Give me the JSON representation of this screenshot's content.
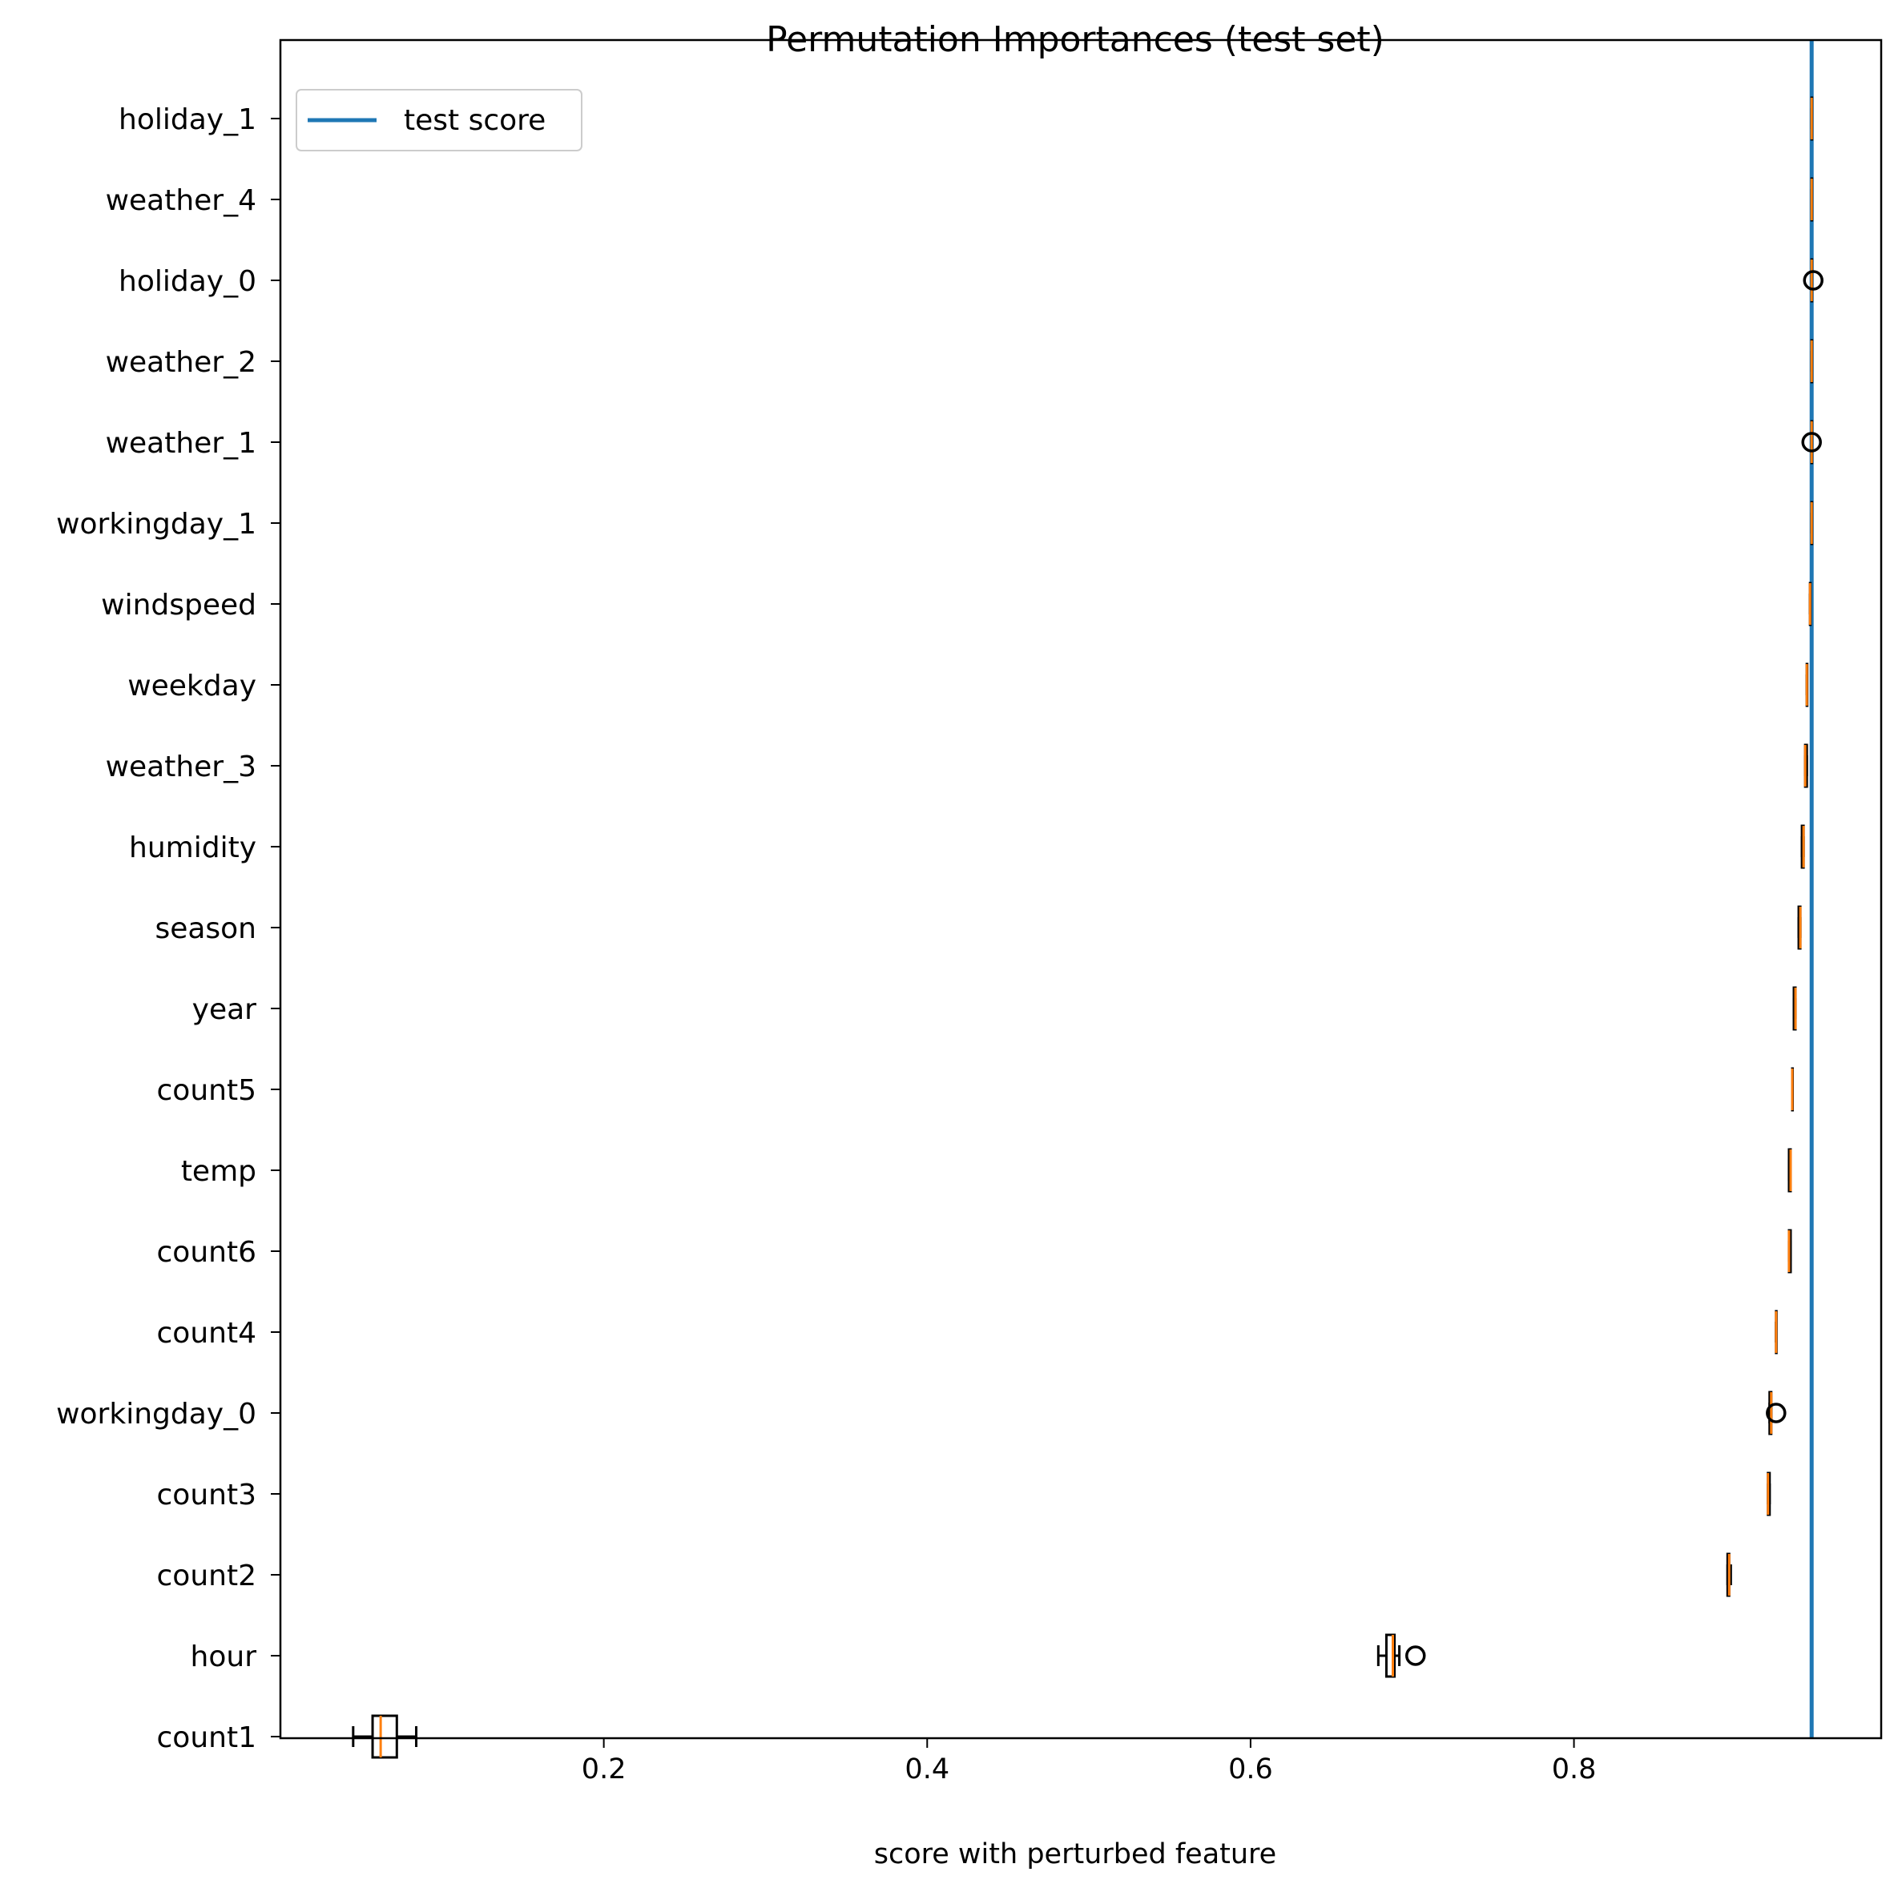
{
  "chart_data": {
    "type": "boxplot",
    "orientation": "horizontal",
    "title": "Permutation Importances (test set)",
    "xlabel": "score with perturbed feature",
    "ylabel": "",
    "xlim": [
      0.0,
      0.99
    ],
    "x_ticks": [
      {
        "value": 0.2,
        "label": "0.2"
      },
      {
        "value": 0.4,
        "label": "0.4"
      },
      {
        "value": 0.6,
        "label": "0.6"
      },
      {
        "value": 0.8,
        "label": "0.8"
      }
    ],
    "grid": false,
    "legend": {
      "placement": "top-left",
      "entries": [
        {
          "label": "test score",
          "color": "#1f77b4"
        }
      ]
    },
    "reference_line": {
      "label": "test score",
      "value": 0.947,
      "color": "#1f77b4"
    },
    "colors": {
      "box": "#000000",
      "median": "#ff7f0e",
      "outlier": "#000000",
      "reference": "#1f77b4"
    },
    "features": [
      {
        "name": "holiday_1",
        "whislo": 0.947,
        "q1": 0.947,
        "med": 0.947,
        "q3": 0.947,
        "whishi": 0.947,
        "fliers": []
      },
      {
        "name": "weather_4",
        "whislo": 0.947,
        "q1": 0.947,
        "med": 0.947,
        "q3": 0.947,
        "whishi": 0.947,
        "fliers": []
      },
      {
        "name": "holiday_0",
        "whislo": 0.947,
        "q1": 0.947,
        "med": 0.947,
        "q3": 0.947,
        "whishi": 0.947,
        "fliers": [
          0.948
        ]
      },
      {
        "name": "weather_2",
        "whislo": 0.947,
        "q1": 0.947,
        "med": 0.947,
        "q3": 0.947,
        "whishi": 0.947,
        "fliers": []
      },
      {
        "name": "weather_1",
        "whislo": 0.947,
        "q1": 0.947,
        "med": 0.947,
        "q3": 0.947,
        "whishi": 0.947,
        "fliers": [
          0.947
        ]
      },
      {
        "name": "workingday_1",
        "whislo": 0.947,
        "q1": 0.947,
        "med": 0.947,
        "q3": 0.947,
        "whishi": 0.947,
        "fliers": []
      },
      {
        "name": "windspeed",
        "whislo": 0.946,
        "q1": 0.946,
        "med": 0.946,
        "q3": 0.946,
        "whishi": 0.946,
        "fliers": []
      },
      {
        "name": "weekday",
        "whislo": 0.944,
        "q1": 0.944,
        "med": 0.944,
        "q3": 0.944,
        "whishi": 0.944,
        "fliers": []
      },
      {
        "name": "weather_3",
        "whislo": 0.943,
        "q1": 0.943,
        "med": 0.943,
        "q3": 0.944,
        "whishi": 0.944,
        "fliers": []
      },
      {
        "name": "humidity",
        "whislo": 0.941,
        "q1": 0.941,
        "med": 0.942,
        "q3": 0.942,
        "whishi": 0.942,
        "fliers": []
      },
      {
        "name": "season",
        "whislo": 0.939,
        "q1": 0.939,
        "med": 0.94,
        "q3": 0.94,
        "whishi": 0.94,
        "fliers": []
      },
      {
        "name": "year",
        "whislo": 0.936,
        "q1": 0.936,
        "med": 0.937,
        "q3": 0.937,
        "whishi": 0.937,
        "fliers": []
      },
      {
        "name": "count5",
        "whislo": 0.935,
        "q1": 0.935,
        "med": 0.935,
        "q3": 0.935,
        "whishi": 0.935,
        "fliers": []
      },
      {
        "name": "temp",
        "whislo": 0.933,
        "q1": 0.933,
        "med": 0.934,
        "q3": 0.934,
        "whishi": 0.934,
        "fliers": []
      },
      {
        "name": "count6",
        "whislo": 0.933,
        "q1": 0.933,
        "med": 0.933,
        "q3": 0.934,
        "whishi": 0.934,
        "fliers": []
      },
      {
        "name": "count4",
        "whislo": 0.925,
        "q1": 0.925,
        "med": 0.925,
        "q3": 0.925,
        "whishi": 0.925,
        "fliers": []
      },
      {
        "name": "workingday_0",
        "whislo": 0.921,
        "q1": 0.921,
        "med": 0.922,
        "q3": 0.922,
        "whishi": 0.922,
        "fliers": [
          0.925
        ]
      },
      {
        "name": "count3",
        "whislo": 0.92,
        "q1": 0.92,
        "med": 0.92,
        "q3": 0.921,
        "whishi": 0.921,
        "fliers": []
      },
      {
        "name": "count2",
        "whislo": 0.895,
        "q1": 0.895,
        "med": 0.896,
        "q3": 0.896,
        "whishi": 0.897,
        "fliers": []
      },
      {
        "name": "hour",
        "whislo": 0.679,
        "q1": 0.684,
        "med": 0.688,
        "q3": 0.689,
        "whishi": 0.692,
        "fliers": [
          0.702
        ]
      },
      {
        "name": "count1",
        "whislo": 0.045,
        "q1": 0.057,
        "med": 0.062,
        "q3": 0.072,
        "whishi": 0.084,
        "fliers": []
      }
    ]
  }
}
